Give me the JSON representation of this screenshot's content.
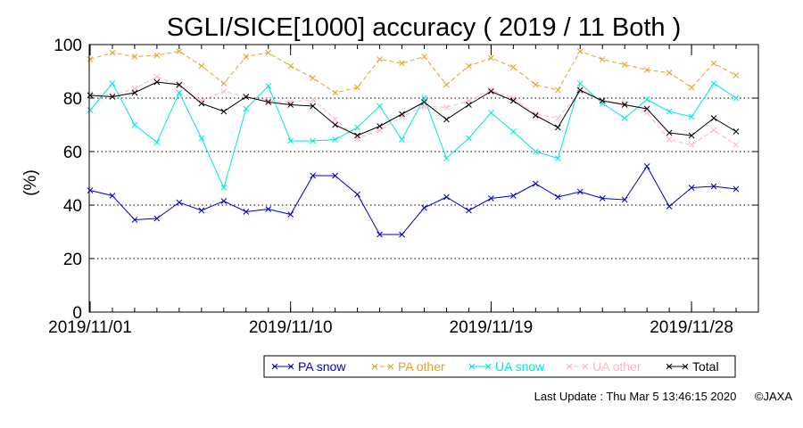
{
  "chart_data": {
    "type": "line",
    "title": "SGLI/SICE[1000] accuracy ( 2019 / 11 Both )",
    "xlabel": "",
    "ylabel": "(%)",
    "x_start": "2019-11-01",
    "x_end": "2019-11-30",
    "xticks": [
      "2019/11/01",
      "2019/11/10",
      "2019/11/19",
      "2019/11/28"
    ],
    "ylim": [
      0,
      100
    ],
    "yticks": [
      0,
      20,
      40,
      60,
      80,
      100
    ],
    "grid": "horizontal dotted",
    "legend": "bottom, boxed",
    "x": [
      "2019-11-01",
      "2019-11-02",
      "2019-11-03",
      "2019-11-04",
      "2019-11-05",
      "2019-11-06",
      "2019-11-07",
      "2019-11-08",
      "2019-11-09",
      "2019-11-10",
      "2019-11-11",
      "2019-11-12",
      "2019-11-13",
      "2019-11-14",
      "2019-11-15",
      "2019-11-16",
      "2019-11-17",
      "2019-11-18",
      "2019-11-19",
      "2019-11-20",
      "2019-11-21",
      "2019-11-22",
      "2019-11-23",
      "2019-11-24",
      "2019-11-25",
      "2019-11-26",
      "2019-11-27",
      "2019-11-28",
      "2019-11-29",
      "2019-11-30"
    ],
    "series": [
      {
        "name": "PA snow",
        "color": "#0000cc",
        "dashed": false,
        "values": [
          45.5,
          43.5,
          34.5,
          35,
          41,
          38,
          41.5,
          37.5,
          38.5,
          36.5,
          51,
          51,
          44,
          29,
          29,
          39,
          43,
          38,
          42.5,
          43.5,
          48,
          43,
          45,
          42.5,
          42,
          54.5,
          39.5,
          46.5,
          47,
          46
        ]
      },
      {
        "name": "PA other",
        "color": "#e8a020",
        "dashed": true,
        "values": [
          94.5,
          97,
          95.5,
          96,
          97.5,
          92,
          85.5,
          95.5,
          97,
          92,
          87.5,
          82,
          84,
          94.5,
          93,
          95.5,
          85,
          92,
          95,
          91.5,
          85,
          83,
          97.5,
          94.5,
          92.5,
          90.5,
          89.5,
          84,
          93,
          88.5
        ]
      },
      {
        "name": "UA snow",
        "color": "#00e5e5",
        "dashed": false,
        "values": [
          75.5,
          85.5,
          70,
          63.5,
          82,
          65,
          46.5,
          76,
          84.5,
          64,
          64,
          64.5,
          69,
          77,
          64.5,
          80,
          57.5,
          65,
          74.5,
          67.5,
          60,
          57.5,
          85.5,
          78,
          72.5,
          79.5,
          75,
          73,
          85.5,
          80
        ]
      },
      {
        "name": "UA other",
        "color": "#ffb6c1",
        "dashed": true,
        "values": [
          81.5,
          81,
          83.5,
          88,
          84.5,
          79,
          82.5,
          80.5,
          79,
          78.5,
          79.5,
          72,
          65,
          68,
          73,
          77,
          76.5,
          79,
          83,
          80,
          74,
          72.5,
          82.5,
          79,
          78,
          74.5,
          64.5,
          62.5,
          68,
          62.5
        ]
      },
      {
        "name": "Total",
        "color": "#000000",
        "dashed": false,
        "values": [
          81,
          80.5,
          82,
          86,
          85,
          78,
          75,
          80.5,
          78.5,
          77.5,
          77,
          70,
          66,
          69.5,
          74,
          78.5,
          72,
          77.5,
          82.5,
          79,
          73.5,
          69,
          83,
          79,
          77.5,
          76,
          67,
          66,
          72.5,
          67.5
        ]
      }
    ]
  },
  "footer": {
    "last_update": "Last Update : Thu Mar  5 13:46:15 2020",
    "credit": "©JAXA"
  }
}
